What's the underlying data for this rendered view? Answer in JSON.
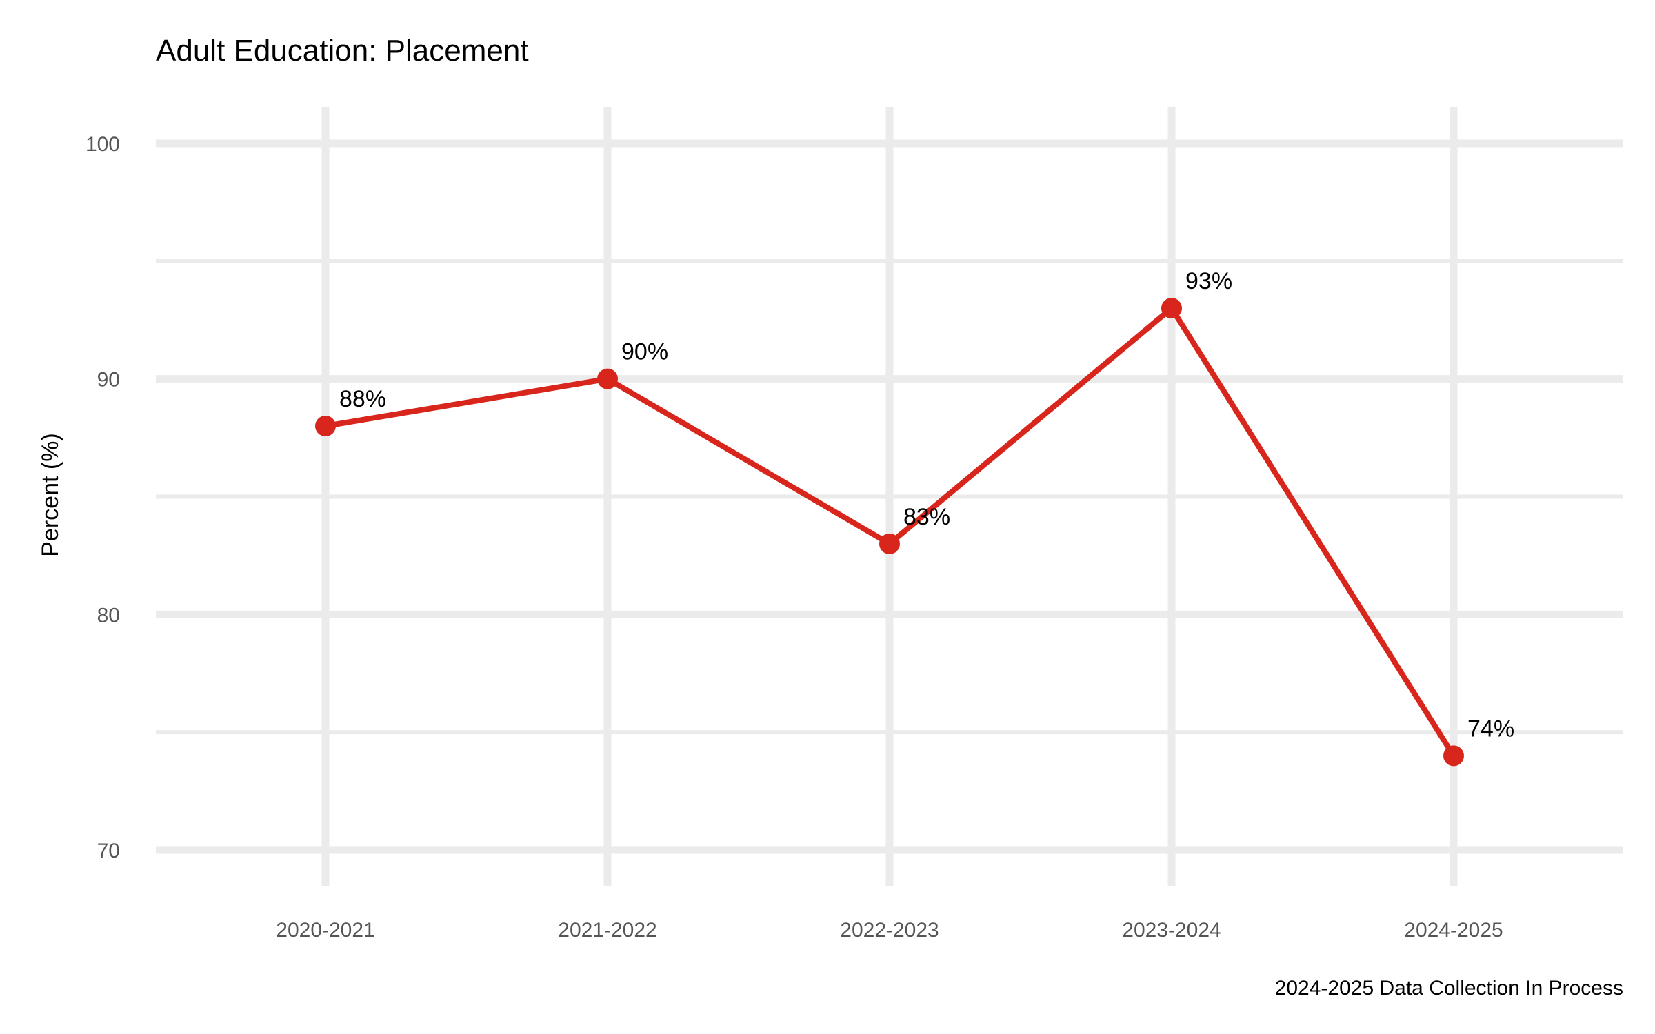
{
  "chart_data": {
    "type": "line",
    "title": "Adult Education: Placement",
    "xlabel": "",
    "ylabel": "Percent (%)",
    "caption": "2024-2025 Data Collection In Process",
    "categories": [
      "2020-2021",
      "2021-2022",
      "2022-2023",
      "2023-2024",
      "2024-2025"
    ],
    "series": [
      {
        "values": [
          88,
          90,
          83,
          93,
          74
        ],
        "data_labels": [
          "88%",
          "90%",
          "83%",
          "93%",
          "74%"
        ],
        "color": "#d9261c"
      }
    ],
    "ylim": [
      70,
      100
    ],
    "y_ticks": [
      70,
      80,
      90,
      100
    ],
    "y_tick_labels": [
      "70",
      "80",
      "90",
      "100"
    ],
    "y_minor_ticks": [
      75,
      85,
      95
    ],
    "grid": true,
    "legend": "none",
    "colors": {
      "line": "#d9261c",
      "grid": "#ebebeb",
      "tick_text": "#555555",
      "text": "#000000",
      "background": "#ffffff"
    }
  }
}
